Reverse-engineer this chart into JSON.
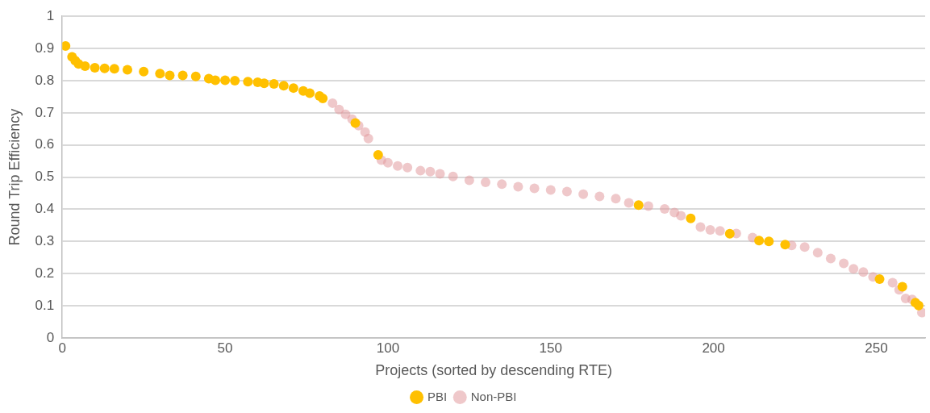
{
  "chart_data": {
    "type": "scatter",
    "xlabel": "Projects (sorted by descending RTE)",
    "ylabel": "Round Trip Efficiency",
    "xlim": [
      0,
      265
    ],
    "xticks": [
      0,
      50,
      100,
      150,
      200,
      250
    ],
    "ylim": [
      0,
      1
    ],
    "yticks": [
      0,
      0.1,
      0.2,
      0.3,
      0.4,
      0.5,
      0.6,
      0.7,
      0.8,
      0.9,
      1
    ],
    "grid": "y",
    "legend": "bottom",
    "marker": "circle",
    "series": [
      {
        "name": "PBI",
        "color": "#ffc000",
        "x": [
          1,
          3,
          4,
          5,
          7,
          10,
          13,
          16,
          20,
          25,
          30,
          33,
          37,
          41,
          45,
          47,
          50,
          53,
          57,
          60,
          62,
          65,
          68,
          71,
          74,
          76,
          79,
          80,
          90,
          97,
          177,
          193,
          205,
          214,
          217,
          222,
          251,
          258,
          262,
          263
        ],
        "values": [
          0.908,
          0.874,
          0.862,
          0.852,
          0.845,
          0.84,
          0.838,
          0.837,
          0.834,
          0.828,
          0.822,
          0.816,
          0.816,
          0.813,
          0.806,
          0.801,
          0.801,
          0.8,
          0.797,
          0.795,
          0.792,
          0.79,
          0.784,
          0.777,
          0.768,
          0.761,
          0.752,
          0.745,
          0.668,
          0.569,
          0.413,
          0.372,
          0.324,
          0.303,
          0.3,
          0.29,
          0.183,
          0.159,
          0.11,
          0.101
        ]
      },
      {
        "name": "Non-PBI",
        "color": "#e29a9e",
        "x": [
          83,
          85,
          87,
          89,
          91,
          93,
          94,
          98,
          100,
          103,
          106,
          110,
          113,
          116,
          120,
          125,
          130,
          135,
          140,
          145,
          150,
          155,
          160,
          165,
          170,
          174,
          180,
          185,
          188,
          190,
          196,
          199,
          202,
          207,
          212,
          224,
          228,
          232,
          236,
          240,
          243,
          246,
          249,
          255,
          257,
          259,
          261,
          264
        ],
        "values": [
          0.73,
          0.71,
          0.695,
          0.68,
          0.66,
          0.64,
          0.62,
          0.553,
          0.545,
          0.535,
          0.53,
          0.52,
          0.517,
          0.51,
          0.502,
          0.49,
          0.484,
          0.478,
          0.47,
          0.465,
          0.46,
          0.455,
          0.447,
          0.44,
          0.433,
          0.42,
          0.41,
          0.401,
          0.39,
          0.38,
          0.345,
          0.336,
          0.333,
          0.325,
          0.312,
          0.288,
          0.283,
          0.265,
          0.247,
          0.232,
          0.215,
          0.205,
          0.19,
          0.172,
          0.15,
          0.123,
          0.12,
          0.079
        ]
      }
    ]
  }
}
